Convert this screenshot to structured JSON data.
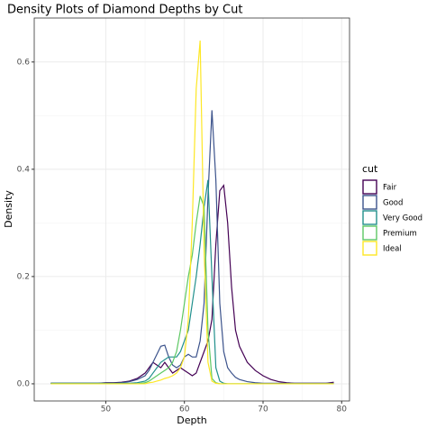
{
  "chart_data": {
    "type": "line",
    "title": "Density Plots of Diamond Depths by Cut",
    "x_label": "Depth",
    "y_label": "Density",
    "legend_title": "cut",
    "x": [
      43,
      44,
      45,
      46,
      47,
      48,
      49,
      50,
      51,
      52,
      53,
      54,
      55,
      55.5,
      56,
      56.5,
      57,
      57.5,
      58,
      58.5,
      59,
      59.5,
      60,
      60.5,
      61,
      61.5,
      62,
      62.5,
      63,
      63.5,
      64,
      64.5,
      65,
      65.5,
      66,
      66.5,
      67,
      68,
      69,
      70,
      71,
      72,
      73,
      74,
      75,
      76,
      77,
      78,
      79
    ],
    "series": [
      {
        "name": "Fair",
        "color": "#440154",
        "values": [
          0.001,
          0.001,
          0.001,
          0.001,
          0.001,
          0.001,
          0.001,
          0.002,
          0.002,
          0.003,
          0.005,
          0.01,
          0.02,
          0.03,
          0.04,
          0.035,
          0.03,
          0.04,
          0.03,
          0.02,
          0.025,
          0.03,
          0.025,
          0.02,
          0.015,
          0.02,
          0.04,
          0.06,
          0.08,
          0.12,
          0.26,
          0.36,
          0.37,
          0.3,
          0.18,
          0.1,
          0.07,
          0.04,
          0.025,
          0.015,
          0.008,
          0.004,
          0.002,
          0.001,
          0.001,
          0.001,
          0.001,
          0.001,
          0.003
        ]
      },
      {
        "name": "Good",
        "color": "#3B528B",
        "values": [
          0.001,
          0.001,
          0.001,
          0.001,
          0.001,
          0.001,
          0.001,
          0.001,
          0.001,
          0.002,
          0.004,
          0.008,
          0.015,
          0.025,
          0.04,
          0.055,
          0.07,
          0.072,
          0.05,
          0.035,
          0.03,
          0.035,
          0.05,
          0.055,
          0.05,
          0.05,
          0.08,
          0.15,
          0.35,
          0.51,
          0.38,
          0.15,
          0.06,
          0.03,
          0.02,
          0.012,
          0.008,
          0.004,
          0.002,
          0.001,
          0.001,
          0.001,
          0.001,
          0.001,
          0.001,
          0.001,
          0.001,
          0.001,
          0.001
        ]
      },
      {
        "name": "Very Good",
        "color": "#21908C",
        "values": [
          0.001,
          0.001,
          0.001,
          0.001,
          0.001,
          0.001,
          0.001,
          0.001,
          0.001,
          0.001,
          0.001,
          0.002,
          0.005,
          0.01,
          0.02,
          0.03,
          0.04,
          0.045,
          0.05,
          0.05,
          0.05,
          0.06,
          0.08,
          0.1,
          0.15,
          0.2,
          0.26,
          0.33,
          0.38,
          0.2,
          0.03,
          0.005,
          0.001,
          0,
          0,
          0,
          0,
          0,
          0,
          0,
          0,
          0,
          0,
          0,
          0,
          0,
          0,
          0,
          0
        ]
      },
      {
        "name": "Premium",
        "color": "#5DC863",
        "values": [
          0,
          0,
          0,
          0,
          0,
          0,
          0,
          0,
          0,
          0,
          0,
          0,
          0.002,
          0.005,
          0.01,
          0.015,
          0.02,
          0.025,
          0.03,
          0.04,
          0.06,
          0.1,
          0.15,
          0.2,
          0.24,
          0.3,
          0.35,
          0.33,
          0.1,
          0.01,
          0.002,
          0,
          0,
          0,
          0,
          0,
          0,
          0,
          0,
          0,
          0,
          0,
          0,
          0,
          0,
          0,
          0,
          0,
          0
        ]
      },
      {
        "name": "Ideal",
        "color": "#FDE725",
        "values": [
          0,
          0,
          0,
          0,
          0,
          0,
          0,
          0,
          0,
          0,
          0,
          0,
          0,
          0.002,
          0.003,
          0.005,
          0.007,
          0.01,
          0.012,
          0.015,
          0.02,
          0.03,
          0.05,
          0.12,
          0.3,
          0.55,
          0.64,
          0.25,
          0.04,
          0.005,
          0.001,
          0,
          0,
          0,
          0,
          0,
          0,
          0,
          0,
          0,
          0,
          0,
          0,
          0,
          0,
          0,
          0,
          0,
          0
        ]
      }
    ],
    "xlim": [
      40.9,
      81.0
    ],
    "ylim": [
      -0.032,
      0.682
    ],
    "xticks": [
      50,
      60,
      70,
      80
    ],
    "yticks": [
      {
        "value": 0,
        "label": "0.0"
      },
      0.2,
      0.4,
      0.6
    ],
    "grid": true,
    "legend": "right"
  }
}
